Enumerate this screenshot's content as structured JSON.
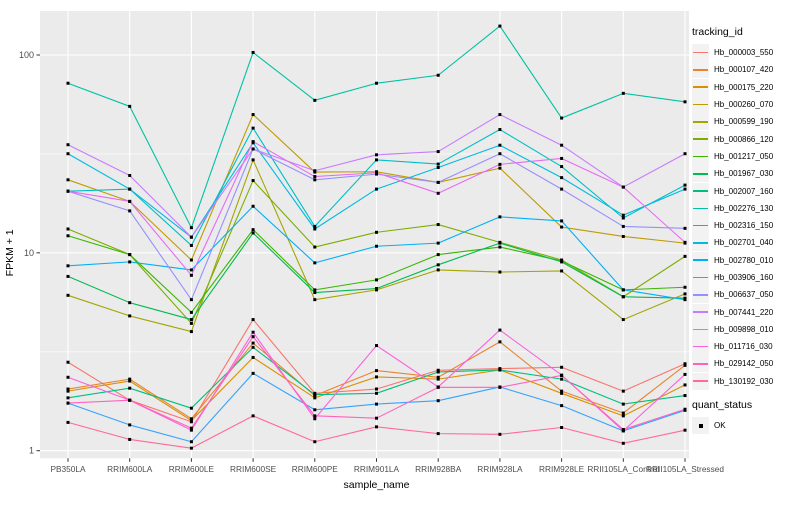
{
  "figure": {
    "background": "#FFFFFF",
    "panel_background": "#EBEBEB",
    "grid_color": "#FFFFFF",
    "tick_label_color": "#4D4D4D",
    "axis_title_color": "#000000",
    "point_color": "#000000"
  },
  "axes": {
    "x_title": "sample_name",
    "y_title": "FPKM + 1",
    "y_tick_labels": [
      "1",
      "10",
      "100"
    ],
    "y_tick_values": [
      1,
      10,
      100
    ],
    "y_minor_values": [
      3.162,
      31.623
    ]
  },
  "legend": {
    "tracking_title": "tracking_id",
    "quant_title": "quant_status",
    "quant_items": [
      {
        "label": "OK",
        "glyph": "black-square"
      }
    ],
    "key_background": "#F2F2F2"
  },
  "chart_data": {
    "type": "line",
    "title": "",
    "xlabel": "sample_name",
    "ylabel": "FPKM + 1",
    "y_scale": "log10",
    "ylim": [
      0.92,
      167
    ],
    "grid": true,
    "legend_position": "right",
    "point_marker": "small-black-square",
    "categories": [
      "PB350LA",
      "RRIM600LA",
      "RRIM600LE",
      "RRIM600SE",
      "RRIM600PE",
      "RRIM901LA",
      "RRIM928BA",
      "RRIM928LA",
      "RRIM928LE",
      "RRII105LA_Control",
      "RRII105LA_Stressed"
    ],
    "series": [
      {
        "name": "Hb_000003_550",
        "color": "#F8766D",
        "values": [
          2.8,
          1.8,
          1.4,
          4.6,
          1.95,
          2.05,
          2.55,
          2.6,
          2.64,
          2.0,
          2.75
        ]
      },
      {
        "name": "Hb_000107_420",
        "color": "#EA8331",
        "values": [
          2.05,
          2.3,
          1.45,
          3.5,
          1.9,
          2.54,
          2.35,
          3.55,
          2.0,
          1.55,
          2.7
        ]
      },
      {
        "name": "Hb_000175_220",
        "color": "#D89000",
        "values": [
          2.0,
          2.25,
          1.42,
          2.96,
          1.85,
          2.36,
          2.3,
          2.56,
          1.95,
          1.5,
          2.15
        ]
      },
      {
        "name": "Hb_000260_070",
        "color": "#C09B00",
        "values": [
          23.4,
          18.2,
          9.2,
          50.0,
          25.6,
          25.7,
          22.7,
          26.8,
          13.5,
          12.1,
          11.2
        ]
      },
      {
        "name": "Hb_000599_190",
        "color": "#A3A500",
        "values": [
          6.1,
          4.8,
          4.0,
          29.5,
          5.8,
          6.5,
          8.2,
          8.0,
          8.1,
          4.6,
          6.2
        ]
      },
      {
        "name": "Hb_000866_120",
        "color": "#7CAE00",
        "values": [
          13.2,
          9.8,
          4.4,
          23.2,
          10.7,
          12.7,
          13.9,
          11.3,
          9.2,
          6.0,
          9.6
        ]
      },
      {
        "name": "Hb_001217_050",
        "color": "#39B600",
        "values": [
          12.2,
          9.8,
          5.0,
          13.1,
          6.5,
          7.3,
          9.8,
          10.7,
          9.1,
          6.5,
          6.7
        ]
      },
      {
        "name": "Hb_001967_030",
        "color": "#00BB4E",
        "values": [
          7.6,
          5.6,
          4.6,
          12.6,
          6.3,
          6.6,
          8.7,
          11.2,
          9.0,
          6.0,
          5.9
        ]
      },
      {
        "name": "Hb_002007_160",
        "color": "#00BF7D",
        "values": [
          1.85,
          2.07,
          1.64,
          3.33,
          1.92,
          1.95,
          2.5,
          2.56,
          2.3,
          1.72,
          1.9
        ]
      },
      {
        "name": "Hb_002276_130",
        "color": "#00C1A3",
        "values": [
          72.0,
          55.0,
          13.4,
          103.0,
          59.0,
          72.0,
          79.0,
          140.0,
          48.0,
          64.0,
          58.0
        ]
      },
      {
        "name": "Hb_002316_150",
        "color": "#00BFC4",
        "values": [
          20.5,
          21.0,
          10.9,
          42.7,
          13.6,
          29.5,
          28.1,
          42.0,
          27.3,
          15.0,
          22.0
        ]
      },
      {
        "name": "Hb_002701_040",
        "color": "#00BAE0",
        "values": [
          31.7,
          21.0,
          12.0,
          36.0,
          13.2,
          21.0,
          27.0,
          35.0,
          24.0,
          15.5,
          21.0
        ]
      },
      {
        "name": "Hb_002780_010",
        "color": "#00B0F6",
        "values": [
          8.6,
          9.0,
          8.2,
          17.2,
          8.9,
          10.8,
          11.2,
          15.2,
          14.5,
          6.5,
          5.8
        ]
      },
      {
        "name": "Hb_003906_160",
        "color": "#35A2FF",
        "values": [
          1.74,
          1.35,
          1.11,
          2.46,
          1.61,
          1.72,
          1.79,
          2.1,
          1.69,
          1.26,
          1.6
        ]
      },
      {
        "name": "Hb_006637_050",
        "color": "#9590FF",
        "values": [
          20.5,
          16.3,
          5.8,
          33.5,
          23.4,
          25.0,
          22.7,
          31.7,
          21.0,
          13.6,
          13.3
        ]
      },
      {
        "name": "Hb_007441_220",
        "color": "#C77CFF",
        "values": [
          35.2,
          24.6,
          12.0,
          33.5,
          26.0,
          31.3,
          32.5,
          50.0,
          35.0,
          21.5,
          31.7
        ]
      },
      {
        "name": "Hb_009898_010",
        "color": "#E76BF3",
        "values": [
          20.5,
          18.2,
          7.7,
          36.5,
          24.3,
          25.4,
          20.0,
          28.0,
          30.0,
          21.5,
          11.3
        ]
      },
      {
        "name": "Hb_011716_030",
        "color": "#FA62DB",
        "values": [
          2.35,
          1.8,
          1.27,
          3.97,
          1.45,
          3.4,
          2.1,
          4.07,
          2.41,
          1.26,
          2.43
        ]
      },
      {
        "name": "Hb_029142_050",
        "color": "#FF62BC",
        "values": [
          1.74,
          1.8,
          1.3,
          3.77,
          1.5,
          1.46,
          2.09,
          2.09,
          2.4,
          1.28,
          1.62
        ]
      },
      {
        "name": "Hb_130192_030",
        "color": "#FF6A98",
        "values": [
          1.39,
          1.14,
          1.03,
          1.5,
          1.11,
          1.32,
          1.22,
          1.21,
          1.31,
          1.09,
          1.27
        ]
      }
    ]
  }
}
